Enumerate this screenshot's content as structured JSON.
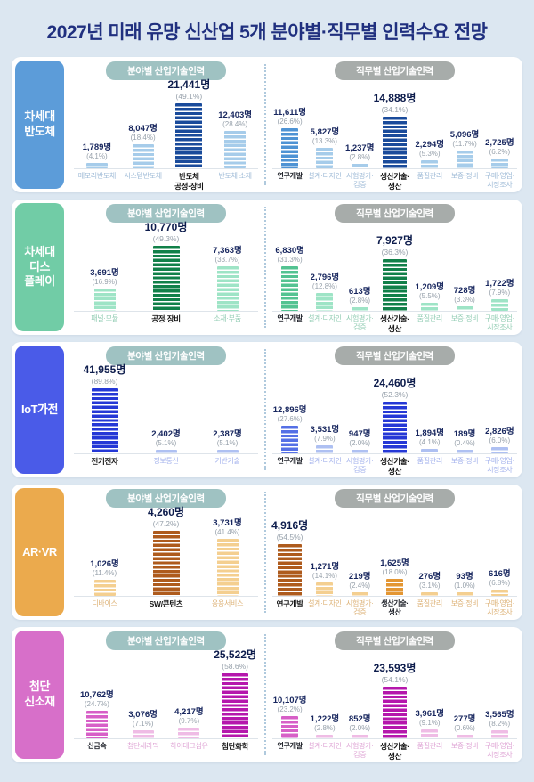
{
  "title": "2027년 미래 유망 신산업 5개 분야별·직무별 인력수요 전망",
  "colors": {
    "background": "#dce7f1",
    "card": "#ffffff",
    "title_text": "#20307f",
    "value_text": "#17265e",
    "pct_text": "#97a1ab",
    "field_pill": "#9fc2c2",
    "job_pill": "#a7acaa",
    "axis": "#dee4ea",
    "divider": "#afc9dd"
  },
  "chart_data": [
    {
      "sector": "차세대 반도체",
      "sector_lines": "차세대\n반도체",
      "palette": {
        "tile": "#5c9cd9",
        "low": "#a6ccea",
        "mid": "#4e93d4",
        "hi": "#1a4b9b",
        "label_low": "#9fbbd7"
      },
      "charts": [
        {
          "type": "bar",
          "title": "분야별 산업기술인력",
          "categories": [
            "메모리반도체",
            "시스템반도체",
            "반도체\n공정·장비",
            "반도체 소재"
          ],
          "values": [
            1789,
            8047,
            21441,
            12403
          ],
          "value_labels": [
            "1,789명",
            "8,047명",
            "21,441명",
            "12,403명"
          ],
          "pct": [
            4.1,
            18.4,
            49.1,
            28.4
          ],
          "pct_labels": [
            "(4.1%)",
            "(18.4%)",
            "(49.1%)",
            "(28.4%)"
          ],
          "emphasis": [
            "low",
            "low",
            "hi",
            "low"
          ]
        },
        {
          "type": "bar",
          "title": "직무별 산업기술인력",
          "categories": [
            "연구개발",
            "설계·디자인",
            "시험평가·\n검증",
            "생산기술·\n생산",
            "품질관리",
            "보증·정비",
            "구매·영업·\n시장조사"
          ],
          "values": [
            11611,
            5827,
            1237,
            14888,
            2294,
            5096,
            2725
          ],
          "value_labels": [
            "11,611명",
            "5,827명",
            "1,237명",
            "14,888명",
            "2,294명",
            "5,096명",
            "2,725명"
          ],
          "pct": [
            26.6,
            13.3,
            2.8,
            34.1,
            5.3,
            11.7,
            6.2
          ],
          "pct_labels": [
            "(26.6%)",
            "(13.3%)",
            "(2.8%)",
            "(34.1%)",
            "(5.3%)",
            "(11.7%)",
            "(6.2%)"
          ],
          "emphasis": [
            "mid",
            "low",
            "low",
            "hi",
            "low",
            "low",
            "low"
          ]
        }
      ]
    },
    {
      "sector": "차세대 디스플레이",
      "sector_lines": "차세대\n디스\n플레이",
      "palette": {
        "tile": "#71cca6",
        "low": "#9ee4c6",
        "mid": "#53c392",
        "hi": "#118049",
        "label_low": "#93cdb4"
      },
      "charts": [
        {
          "type": "bar",
          "title": "분야별 산업기술인력",
          "categories": [
            "패널·모듈",
            "공정·장비",
            "소재·부품"
          ],
          "values": [
            3691,
            10770,
            7363
          ],
          "value_labels": [
            "3,691명",
            "10,770명",
            "7,363명"
          ],
          "pct": [
            16.9,
            49.3,
            33.7
          ],
          "pct_labels": [
            "(16.9%)",
            "(49.3%)",
            "(33.7%)"
          ],
          "emphasis": [
            "low",
            "hi",
            "low"
          ]
        },
        {
          "type": "bar",
          "title": "직무별 산업기술인력",
          "categories": [
            "연구개발",
            "설계·디자인",
            "시험평가·\n검증",
            "생산기술·\n생산",
            "품질관리",
            "보증·정비",
            "구매·영업·\n시장조사"
          ],
          "values": [
            6830,
            2796,
            613,
            7927,
            1209,
            728,
            1722
          ],
          "value_labels": [
            "6,830명",
            "2,796명",
            "613명",
            "7,927명",
            "1,209명",
            "728명",
            "1,722명"
          ],
          "pct": [
            31.3,
            12.8,
            2.8,
            36.3,
            5.5,
            3.3,
            7.9
          ],
          "pct_labels": [
            "(31.3%)",
            "(12.8%)",
            "(2.8%)",
            "(36.3%)",
            "(5.5%)",
            "(3.3%)",
            "(7.9%)"
          ],
          "emphasis": [
            "mid",
            "low",
            "low",
            "hi",
            "low",
            "low",
            "low"
          ]
        }
      ]
    },
    {
      "sector": "IoT가전",
      "sector_lines": "IoT가전",
      "palette": {
        "tile": "#4a5be8",
        "low": "#aec0f2",
        "mid": "#5570e6",
        "hi": "#2538d6",
        "label_low": "#a3b2ec"
      },
      "charts": [
        {
          "type": "bar",
          "title": "분야별 산업기술인력",
          "categories": [
            "전기전자",
            "정보통신",
            "기반기술"
          ],
          "values": [
            41955,
            2402,
            2387
          ],
          "value_labels": [
            "41,955명",
            "2,402명",
            "2,387명"
          ],
          "pct": [
            89.8,
            5.1,
            5.1
          ],
          "pct_labels": [
            "(89.8%)",
            "(5.1%)",
            "(5.1%)"
          ],
          "emphasis": [
            "hi",
            "low",
            "low"
          ]
        },
        {
          "type": "bar",
          "title": "직무별 산업기술인력",
          "categories": [
            "연구개발",
            "설계·디자인",
            "시험평가·\n검증",
            "생산기술·\n생산",
            "품질관리",
            "보증·정비",
            "구매·영업·\n시장조사"
          ],
          "values": [
            12896,
            3531,
            947,
            24460,
            1894,
            189,
            2826
          ],
          "value_labels": [
            "12,896명",
            "3,531명",
            "947명",
            "24,460명",
            "1,894명",
            "189명",
            "2,826명"
          ],
          "pct": [
            27.6,
            7.9,
            2.0,
            52.3,
            4.1,
            0.4,
            6.0
          ],
          "pct_labels": [
            "(27.6%)",
            "(7.9%)",
            "(2.0%)",
            "(52.3%)",
            "(4.1%)",
            "(0.4%)",
            "(6.0%)"
          ],
          "emphasis": [
            "mid",
            "low",
            "low",
            "hi",
            "low",
            "low",
            "low"
          ]
        }
      ]
    },
    {
      "sector": "AR·VR",
      "sector_lines": "AR·VR",
      "palette": {
        "tile": "#ebaa4d",
        "low": "#f4cf90",
        "mid": "#e39633",
        "hi": "#ae5b1d",
        "label_low": "#ddb277"
      },
      "charts": [
        {
          "type": "bar",
          "title": "분야별 산업기술인력",
          "categories": [
            "디바이스",
            "SW/콘텐츠",
            "응용서비스"
          ],
          "values": [
            1026,
            4260,
            3731
          ],
          "value_labels": [
            "1,026명",
            "4,260명",
            "3,731명"
          ],
          "pct": [
            11.4,
            47.2,
            41.4
          ],
          "pct_labels": [
            "(11.4%)",
            "(47.2%)",
            "(41.4%)"
          ],
          "emphasis": [
            "low",
            "hi",
            "low"
          ]
        },
        {
          "type": "bar",
          "title": "직무별 산업기술인력",
          "categories": [
            "연구개발",
            "설계·디자인",
            "시험평가·\n검증",
            "생산기술·\n생산",
            "품질관리",
            "보증·정비",
            "구매·영업·\n시장조사"
          ],
          "values": [
            4916,
            1271,
            219,
            1625,
            276,
            93,
            616
          ],
          "value_labels": [
            "4,916명",
            "1,271명",
            "219명",
            "1,625명",
            "276명",
            "93명",
            "616명"
          ],
          "pct": [
            54.5,
            14.1,
            2.4,
            18.0,
            3.1,
            1.0,
            6.8
          ],
          "pct_labels": [
            "(54.5%)",
            "(14.1%)",
            "(2.4%)",
            "(18.0%)",
            "(3.1%)",
            "(1.0%)",
            "(6.8%)"
          ],
          "emphasis": [
            "hi",
            "low",
            "low",
            "mid",
            "low",
            "low",
            "low"
          ]
        }
      ]
    },
    {
      "sector": "첨단 신소재",
      "sector_lines": "첨단\n신소재",
      "palette": {
        "tile": "#d76fc9",
        "low": "#efbce5",
        "mid": "#d75fc7",
        "hi": "#b517ac",
        "label_low": "#dfa5d5"
      },
      "charts": [
        {
          "type": "bar",
          "title": "분야별 산업기술인력",
          "categories": [
            "신금속",
            "첨단세라믹",
            "하이테크섬유",
            "첨단화학"
          ],
          "values": [
            10762,
            3076,
            4217,
            25522
          ],
          "value_labels": [
            "10,762명",
            "3,076명",
            "4,217명",
            "25,522명"
          ],
          "pct": [
            24.7,
            7.1,
            9.7,
            58.6
          ],
          "pct_labels": [
            "(24.7%)",
            "(7.1%)",
            "(9.7%)",
            "(58.6%)"
          ],
          "emphasis": [
            "mid",
            "low",
            "low",
            "hi"
          ]
        },
        {
          "type": "bar",
          "title": "직무별 산업기술인력",
          "categories": [
            "연구개발",
            "설계·디자인",
            "시험평가·\n검증",
            "생산기술·\n생산",
            "품질관리",
            "보증·정비",
            "구매·영업·\n시장조사"
          ],
          "values": [
            10107,
            1222,
            852,
            23593,
            3961,
            277,
            3565
          ],
          "value_labels": [
            "10,107명",
            "1,222명",
            "852명",
            "23,593명",
            "3,961명",
            "277명",
            "3,565명"
          ],
          "pct": [
            23.2,
            2.8,
            2.0,
            54.1,
            9.1,
            0.6,
            8.2
          ],
          "pct_labels": [
            "(23.2%)",
            "(2.8%)",
            "(2.0%)",
            "(54.1%)",
            "(9.1%)",
            "(0.6%)",
            "(8.2%)"
          ],
          "emphasis": [
            "mid",
            "low",
            "low",
            "hi",
            "low",
            "low",
            "low"
          ]
        }
      ]
    }
  ]
}
